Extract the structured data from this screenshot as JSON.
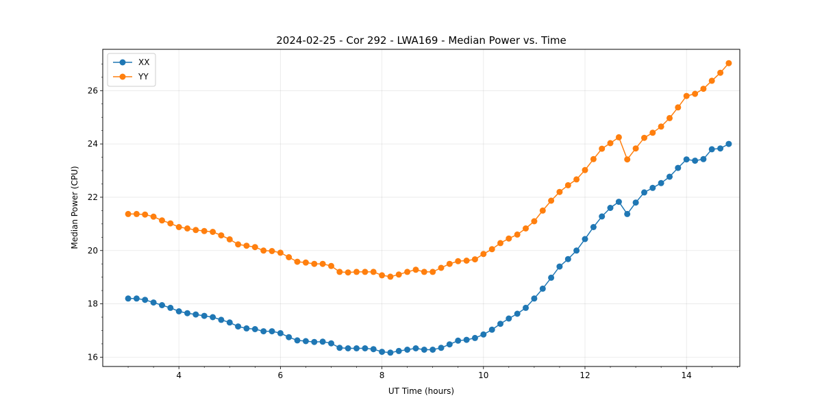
{
  "chart_data": {
    "type": "line",
    "title": "2024-02-25 - Cor 292 - LWA169 - Median Power vs. Time",
    "xlabel": "UT Time (hours)",
    "ylabel": "Median Power (CPU)",
    "xlim": [
      2.5,
      15.05
    ],
    "ylim": [
      15.65,
      27.55
    ],
    "xticks": [
      4,
      6,
      8,
      10,
      12,
      14
    ],
    "xtick_labels": [
      "4",
      "6",
      "8",
      "10",
      "12",
      "14"
    ],
    "yticks": [
      16,
      18,
      20,
      22,
      24,
      26
    ],
    "ytick_labels": [
      "16",
      "18",
      "20",
      "22",
      "24",
      "26"
    ],
    "grid": true,
    "legend_position": "top-left",
    "x": [
      3.0,
      3.167,
      3.333,
      3.5,
      3.667,
      3.833,
      4.0,
      4.167,
      4.333,
      4.5,
      4.667,
      4.833,
      5.0,
      5.167,
      5.333,
      5.5,
      5.667,
      5.833,
      6.0,
      6.167,
      6.333,
      6.5,
      6.667,
      6.833,
      7.0,
      7.167,
      7.333,
      7.5,
      7.667,
      7.833,
      8.0,
      8.167,
      8.333,
      8.5,
      8.667,
      8.833,
      9.0,
      9.167,
      9.333,
      9.5,
      9.667,
      9.833,
      10.0,
      10.167,
      10.333,
      10.5,
      10.667,
      10.833,
      11.0,
      11.167,
      11.333,
      11.5,
      11.667,
      11.833,
      12.0,
      12.167,
      12.333,
      12.5,
      12.667,
      12.833,
      13.0,
      13.167,
      13.333,
      13.5,
      13.667,
      13.833,
      14.0,
      14.167,
      14.333,
      14.5,
      14.667,
      14.833
    ],
    "series": [
      {
        "name": "XX",
        "color": "#1f77b4",
        "values": [
          18.2,
          18.2,
          18.15,
          18.05,
          17.95,
          17.85,
          17.72,
          17.65,
          17.6,
          17.55,
          17.5,
          17.4,
          17.3,
          17.15,
          17.08,
          17.05,
          16.97,
          16.97,
          16.9,
          16.75,
          16.63,
          16.6,
          16.57,
          16.58,
          16.52,
          16.35,
          16.33,
          16.33,
          16.33,
          16.3,
          16.2,
          16.17,
          16.23,
          16.28,
          16.33,
          16.28,
          16.28,
          16.35,
          16.48,
          16.62,
          16.65,
          16.72,
          16.85,
          17.03,
          17.25,
          17.45,
          17.63,
          17.85,
          18.2,
          18.57,
          18.98,
          19.4,
          19.68,
          20.0,
          20.43,
          20.88,
          21.28,
          21.6,
          21.83,
          21.37,
          21.8,
          22.18,
          22.35,
          22.53,
          22.77,
          23.1,
          23.42,
          23.37,
          23.43,
          23.8,
          23.83,
          24.0
        ]
      },
      {
        "name": "YY",
        "color": "#ff7f0e",
        "values": [
          21.37,
          21.37,
          21.35,
          21.27,
          21.13,
          21.02,
          20.88,
          20.83,
          20.77,
          20.73,
          20.7,
          20.57,
          20.42,
          20.23,
          20.18,
          20.13,
          20.0,
          19.98,
          19.92,
          19.75,
          19.58,
          19.55,
          19.5,
          19.5,
          19.42,
          19.2,
          19.18,
          19.2,
          19.2,
          19.2,
          19.07,
          19.02,
          19.1,
          19.2,
          19.28,
          19.2,
          19.2,
          19.35,
          19.5,
          19.6,
          19.62,
          19.67,
          19.87,
          20.05,
          20.28,
          20.45,
          20.6,
          20.83,
          21.1,
          21.5,
          21.87,
          22.2,
          22.45,
          22.67,
          23.02,
          23.43,
          23.82,
          24.03,
          24.25,
          23.42,
          23.83,
          24.23,
          24.42,
          24.65,
          24.97,
          25.37,
          25.8,
          25.88,
          26.07,
          26.37,
          26.67,
          27.03
        ]
      }
    ]
  }
}
